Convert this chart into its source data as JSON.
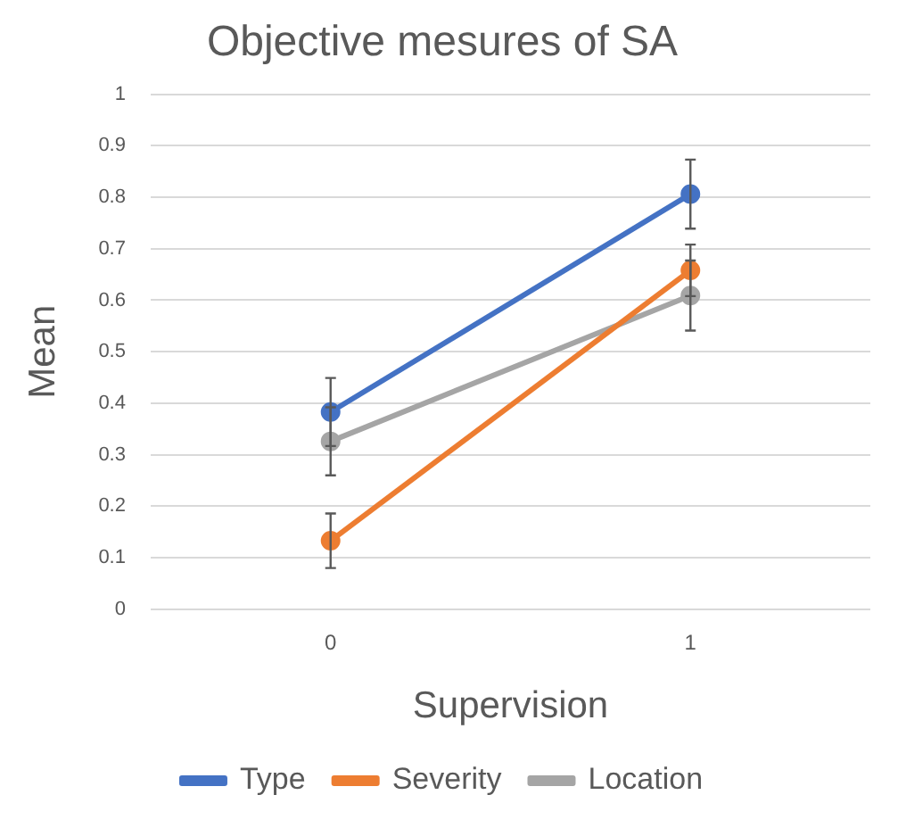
{
  "chart_data": {
    "type": "line",
    "title": "Objective mesures of SA",
    "xlabel": "Supervision",
    "ylabel": "Mean",
    "categories": [
      "0",
      "1"
    ],
    "series": [
      {
        "name": "Type",
        "color": "#4472c4",
        "values": [
          0.383,
          0.806
        ],
        "errors": [
          0.066,
          0.067
        ]
      },
      {
        "name": "Severity",
        "color": "#ed7d31",
        "values": [
          0.133,
          0.658
        ],
        "errors": [
          0.053,
          0.05
        ]
      },
      {
        "name": "Location",
        "color": "#a5a5a5",
        "values": [
          0.326,
          0.609
        ],
        "errors": [
          0.066,
          0.068
        ]
      }
    ],
    "ylim": [
      0,
      1
    ],
    "yticks": [
      0,
      0.1,
      0.2,
      0.3,
      0.4,
      0.5,
      0.6,
      0.7,
      0.8,
      0.9,
      1
    ],
    "grid": "y",
    "legend": "bottom",
    "marker": "circle",
    "line_style": "solid"
  }
}
